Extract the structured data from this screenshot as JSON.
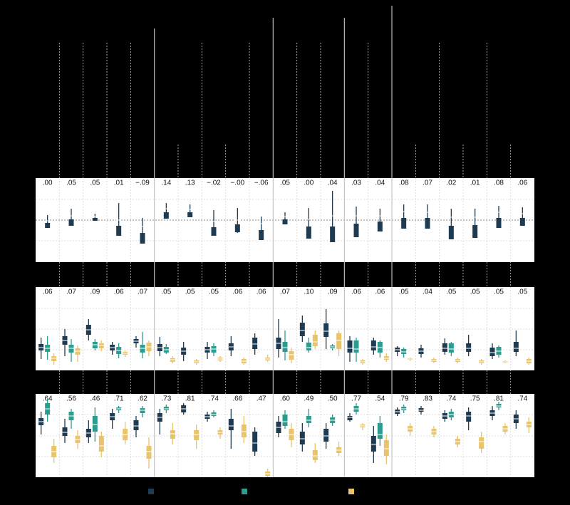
{
  "chart_data": [
    {
      "type": "box",
      "ylim": [
        -59,
        59
      ],
      "yticks": [
        -29,
        0,
        29
      ],
      "grid": true,
      "labels": [
        ".00",
        ".05",
        ".05",
        ".01",
        "−.09",
        ".14",
        ".13",
        "−.02",
        "−.00",
        "−.06",
        ".05",
        ".00",
        ".04",
        ".03",
        ".04",
        ".08",
        ".07",
        ".02",
        ".01",
        ".08",
        ".06"
      ],
      "series": [
        {
          "color": "#1f3b52",
          "values": [
            [
              7,
              3,
              -1,
              -4,
              -9
            ],
            [
              16,
              10,
              6,
              1,
              -2
            ],
            [
              9,
              7,
              5,
              3,
              1
            ],
            [
              24,
              6,
              0,
              -8,
              -13
            ],
            [
              3,
              -3,
              -9,
              -18,
              -27
            ],
            [
              24,
              20,
              16,
              11,
              5
            ],
            [
              22,
              18,
              15,
              11,
              7
            ],
            [
              14,
              2,
              -2,
              -10,
              -19
            ],
            [
              17,
              5,
              0,
              -6,
              -18
            ],
            [
              5,
              0,
              -5,
              -14,
              -21
            ],
            [
              11,
              8,
              5,
              1,
              -2
            ],
            [
              17,
              8,
              1,
              -9,
              -15
            ],
            [
              41,
              13,
              6,
              -9,
              -18
            ],
            [
              19,
              14,
              6,
              -5,
              -13
            ],
            [
              16,
              12,
              6,
              -2,
              -8
            ],
            [
              22,
              18,
              12,
              3,
              -5
            ],
            [
              22,
              18,
              11,
              3,
              -4
            ],
            [
              16,
              11,
              4,
              -8,
              -13
            ],
            [
              16,
              11,
              4,
              -7,
              -13
            ],
            [
              20,
              17,
              11,
              3,
              -3
            ],
            [
              18,
              14,
              9,
              3,
              -5
            ]
          ]
        }
      ]
    },
    {
      "type": "box",
      "ylim": [
        0,
        117
      ],
      "yticks": [
        29,
        58,
        87
      ],
      "grid": true,
      "labels": [
        ".06",
        ".07",
        ".09",
        ".06",
        ".07",
        ".05",
        ".05",
        ".05",
        ".06",
        ".06",
        ".07",
        ".10",
        ".09",
        ".06",
        ".06",
        ".05",
        ".04",
        ".05",
        ".05",
        ".05",
        ".05"
      ],
      "series": [
        {
          "color": "#1f3b52",
          "values": [
            [
              16,
              28,
              32,
              37,
              46
            ],
            [
              20,
              36,
              42,
              48,
              58
            ],
            [
              42,
              50,
              57,
              64,
              72
            ],
            [
              22,
              28,
              32,
              36,
              40
            ],
            [
              32,
              38,
              41,
              44,
              48
            ],
            [
              20,
              27,
              32,
              37,
              47
            ],
            [
              13,
              22,
              27,
              32,
              40
            ],
            [
              16,
              25,
              29,
              33,
              40
            ],
            [
              20,
              28,
              33,
              38,
              48
            ],
            [
              22,
              30,
              37,
              46,
              52
            ],
            [
              18,
              30,
              38,
              46,
              72
            ],
            [
              40,
              48,
              56,
              67,
              77
            ],
            [
              30,
              47,
              55,
              66,
              86
            ],
            [
              12,
              25,
              31,
              42,
              48
            ],
            [
              22,
              28,
              33,
              42,
              46
            ],
            [
              20,
              26,
              29,
              32,
              34
            ],
            [
              18,
              23,
              27,
              31,
              36
            ],
            [
              22,
              26,
              31,
              38,
              45
            ],
            [
              20,
              26,
              31,
              38,
              50
            ],
            [
              16,
              20,
              25,
              32,
              38
            ],
            [
              20,
              26,
              31,
              40,
              56
            ]
          ]
        },
        {
          "color": "#2a9d8f",
          "values": [
            [
              15,
              26,
              31,
              36,
              48
            ],
            [
              12,
              25,
              31,
              36,
              44
            ],
            [
              28,
              31,
              36,
              40,
              44
            ],
            [
              17,
              23,
              28,
              33,
              38
            ],
            [
              17,
              25,
              31,
              36,
              54
            ],
            [
              23,
              25,
              29,
              33,
              37
            ],
            null,
            [
              20,
              25,
              30,
              34,
              38
            ],
            null,
            null,
            [
              14,
              26,
              32,
              40,
              56
            ],
            [
              25,
              28,
              32,
              39,
              46
            ],
            [
              28,
              31,
              33,
              35,
              37
            ],
            [
              12,
              25,
              30,
              42,
              46
            ],
            [
              18,
              25,
              32,
              40,
              42
            ],
            [
              18,
              23,
              26,
              30,
              32
            ],
            null,
            [
              20,
              25,
              30,
              38,
              40
            ],
            null,
            [
              18,
              22,
              27,
              33,
              35
            ],
            null
          ]
        },
        {
          "color": "#e9c46a",
          "values": [
            [
              8,
              13,
              17,
              20,
              24
            ],
            [
              12,
              22,
              27,
              31,
              35
            ],
            [
              27,
              31,
              35,
              38,
              42
            ],
            [
              19,
              22,
              24,
              26,
              28
            ],
            [
              20,
              27,
              33,
              39,
              42
            ],
            [
              10,
              12,
              15,
              17,
              20
            ],
            [
              8,
              10,
              12,
              14,
              16
            ],
            [
              12,
              14,
              16,
              18,
              20
            ],
            [
              8,
              10,
              13,
              16,
              18
            ],
            [
              12,
              14,
              16,
              18,
              22
            ],
            [
              10,
              15,
              22,
              27,
              32
            ],
            [
              30,
              34,
              40,
              50,
              56
            ],
            [
              20,
              30,
              42,
              52,
              56
            ],
            [
              8,
              10,
              12,
              14,
              16
            ],
            [
              12,
              15,
              17,
              20,
              24
            ],
            [
              13,
              15,
              16,
              17,
              18
            ],
            [
              10,
              12,
              14,
              16,
              18
            ],
            [
              10,
              12,
              14,
              16,
              18
            ],
            [
              8,
              10,
              12,
              14,
              16
            ],
            [
              10,
              11,
              12,
              13,
              14
            ],
            [
              8,
              10,
              13,
              16,
              18
            ]
          ]
        }
      ]
    },
    {
      "type": "box",
      "ylim": [
        0,
        117
      ],
      "yticks": [
        29,
        58,
        88
      ],
      "grid": true,
      "labels": [
        ".64",
        ".56",
        ".46",
        ".71",
        ".62",
        ".73",
        ".81",
        ".74",
        ".66",
        ".47",
        ".60",
        ".49",
        ".50",
        ".77",
        ".54",
        ".79",
        ".83",
        ".74",
        ".75",
        ".81",
        ".74"
      ],
      "series": [
        {
          "color": "#1f3b52",
          "values": [
            [
              60,
              73,
              78,
              83,
              92
            ],
            [
              48,
              58,
              63,
              70,
              82
            ],
            [
              48,
              56,
              62,
              68,
              80
            ],
            [
              68,
              80,
              85,
              90,
              96
            ],
            [
              56,
              66,
              72,
              80,
              86
            ],
            [
              60,
              78,
              84,
              90,
              96
            ],
            [
              88,
              91,
              96,
              101,
              104
            ],
            [
              78,
              82,
              85,
              88,
              92
            ],
            [
              40,
              66,
              72,
              82,
              96
            ],
            [
              30,
              36,
              48,
              64,
              70
            ],
            [
              56,
              62,
              70,
              78,
              86
            ],
            [
              36,
              46,
              54,
              64,
              76
            ],
            [
              40,
              50,
              58,
              68,
              76
            ],
            [
              78,
              80,
              84,
              86,
              90
            ],
            [
              20,
              36,
              46,
              58,
              72
            ],
            [
              86,
              89,
              92,
              95,
              98
            ],
            [
              88,
              92,
              94,
              97,
              100
            ],
            [
              78,
              82,
              86,
              90,
              94
            ],
            [
              66,
              78,
              86,
              92,
              98
            ],
            [
              80,
              86,
              90,
              94,
              100
            ],
            [
              68,
              76,
              82,
              88,
              94
            ]
          ]
        },
        {
          "color": "#2a9d8f",
          "values": [
            [
              78,
              88,
              96,
              104,
              110
            ],
            [
              68,
              80,
              86,
              92,
              96
            ],
            [
              50,
              64,
              74,
              86,
              98
            ],
            [
              90,
              94,
              96,
              98,
              100
            ],
            [
              84,
              90,
              94,
              97,
              100
            ],
            [
              90,
              94,
              96,
              99,
              102
            ],
            null,
            [
              84,
              86,
              88,
              91,
              94
            ],
            null,
            null,
            [
              68,
              72,
              78,
              88,
              94
            ],
            [
              70,
              76,
              80,
              86,
              96
            ],
            [
              72,
              76,
              80,
              84,
              88
            ],
            [
              88,
              92,
              96,
              100,
              104
            ],
            [
              44,
              54,
              60,
              76,
              86
            ],
            [
              90,
              94,
              96,
              99,
              102
            ],
            null,
            [
              80,
              84,
              88,
              92,
              96
            ],
            null,
            [
              94,
              98,
              100,
              103,
              106
            ],
            null
          ]
        },
        {
          "color": "#e9c46a",
          "values": [
            [
              20,
              28,
              36,
              44,
              54
            ],
            [
              40,
              48,
              53,
              58,
              66
            ],
            [
              28,
              36,
              44,
              58,
              64
            ],
            [
              46,
              52,
              60,
              68,
              78
            ],
            [
              12,
              26,
              36,
              44,
              56
            ],
            [
              46,
              54,
              61,
              66,
              76
            ],
            [
              40,
              52,
              60,
              66,
              74
            ],
            [
              54,
              60,
              63,
              66,
              70
            ],
            [
              48,
              56,
              64,
              74,
              86
            ],
            [
              0,
              2,
              5,
              8,
              12
            ],
            [
              42,
              52,
              60,
              68,
              76
            ],
            [
              20,
              24,
              30,
              38,
              48
            ],
            [
              30,
              34,
              38,
              42,
              50
            ],
            [
              66,
              70,
              72,
              74,
              76
            ],
            [
              18,
              30,
              40,
              52,
              60
            ],
            [
              58,
              64,
              68,
              72,
              76
            ],
            [
              56,
              60,
              64,
              68,
              72
            ],
            [
              42,
              46,
              50,
              54,
              58
            ],
            [
              34,
              40,
              50,
              56,
              64
            ],
            [
              60,
              64,
              68,
              72,
              76
            ],
            [
              62,
              70,
              74,
              78,
              84
            ]
          ]
        }
      ]
    }
  ]
}
